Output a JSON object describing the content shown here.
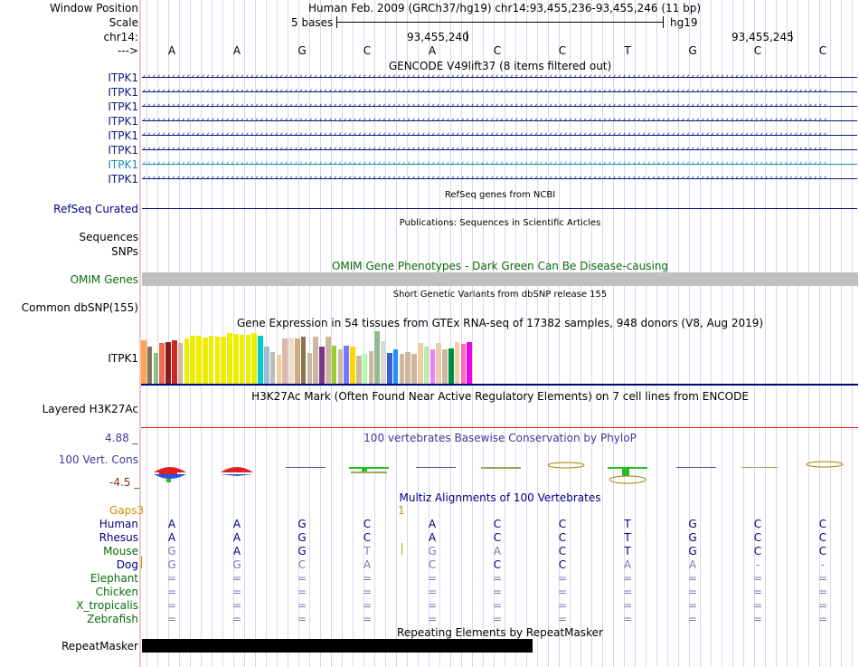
{
  "header": {
    "window_position_label": "Window Position",
    "assembly_position": "Human Feb. 2009 (GRCh37/hg19)   chr14:93,455,236-93,455,246 (11 bp)",
    "scale_label": "Scale",
    "scale_text": "5 bases",
    "scale_db": "hg19",
    "chrom_label": "chr14:",
    "pos1": "93,455,240",
    "pos2": "93,455,245",
    "strand_label": "--->",
    "bases": [
      "A",
      "A",
      "G",
      "C",
      "A",
      "C",
      "C",
      "T",
      "G",
      "C",
      "C"
    ]
  },
  "gencode": {
    "title": "GENCODE V49lift37 (8 items filtered out)",
    "items": [
      "ITPK1",
      "ITPK1",
      "ITPK1",
      "ITPK1",
      "ITPK1",
      "ITPK1",
      "ITPK1",
      "ITPK1"
    ],
    "arrows": "‹‹‹‹‹‹‹‹‹‹‹‹‹‹‹‹‹‹‹‹‹‹‹‹‹‹‹‹‹‹‹‹‹‹‹‹‹‹‹‹‹‹‹‹‹‹‹‹‹‹‹‹‹‹‹‹‹‹‹‹‹‹‹‹‹‹‹‹‹‹‹‹‹‹‹‹‹‹‹‹‹‹‹‹‹‹‹‹‹‹‹‹‹‹‹‹‹‹‹‹‹‹‹‹‹‹‹‹‹‹‹‹‹‹‹‹‹‹‹‹‹‹‹‹‹‹‹‹‹‹‹‹‹‹‹‹‹‹‹‹"
  },
  "refseq": {
    "title": "RefSeq genes from NCBI",
    "label": "RefSeq Curated"
  },
  "publications": {
    "title": "Publications: Sequences in Scientific Articles",
    "label1": "Sequences",
    "label2": "SNPs"
  },
  "omim": {
    "title": "OMIM Gene Phenotypes - Dark Green Can Be Disease-causing",
    "label": "OMIM Genes"
  },
  "dbsnp": {
    "title": "Short Genetic Variants from dbSNP release 155",
    "label": "Common dbSNP(155)"
  },
  "gtex": {
    "title": "Gene Expression in 54 tissues from GTEx RNA-seq of 17382 samples, 948 donors (V8, Aug 2019)",
    "label": "ITPK1",
    "levels": [
      0.83,
      0.7,
      0.58,
      0.78,
      0.8,
      0.82,
      0.78,
      0.87,
      0.92,
      0.92,
      0.88,
      0.92,
      0.9,
      0.9,
      0.96,
      0.95,
      0.93,
      0.93,
      0.96,
      0.92,
      0.7,
      0.6,
      0.55,
      0.87,
      0.88,
      0.86,
      0.9,
      0.58,
      0.9,
      0.7,
      0.9,
      0.72,
      0.66,
      0.73,
      0.71,
      0.54,
      0.57,
      0.62,
      1.0,
      0.81,
      0.58,
      0.66,
      0.57,
      0.6,
      0.57,
      0.77,
      0.71,
      0.66,
      0.77,
      0.65,
      0.68,
      0.8,
      0.76,
      0.8
    ],
    "colors": [
      "#ffa54f",
      "#8b7355",
      "#8fbc8f",
      "#ee6a50",
      "#8b1a1a",
      "#cd2626",
      "#cdb79e",
      "#eeee00",
      "#eeee00",
      "#eeee00",
      "#eeee00",
      "#eeee00",
      "#eeee00",
      "#eeee00",
      "#eeee00",
      "#eeee00",
      "#eeee00",
      "#eeee00",
      "#eeee00",
      "#00cdcd",
      "#9ac0cd",
      "#bbbbbb",
      "#eecfa1",
      "#ddb8a8",
      "#eedfcc",
      "#cdaa7d",
      "#8b7355",
      "#cdb79e",
      "#cdb79e",
      "#7a378b",
      "#cdb79e",
      "#9acd32",
      "#cdb79e",
      "#7777ff",
      "#ffd700",
      "#cdb79e",
      "#aaffaa",
      "#cdb79e",
      "#8fbc8f",
      "#d9d9d9",
      "#3a5fcd",
      "#1e90ff",
      "#cdb79e",
      "#cdb79e",
      "#cdb79e",
      "#eecfa1",
      "#b4eeb4",
      "#ee82ee",
      "#eecbad",
      "#cdb79e",
      "#008b45",
      "#eecfa1",
      "#ff69b4",
      "#ee00ee"
    ]
  },
  "h3k27ac": {
    "title": "H3K27Ac Mark (Often Found Near Active Regulatory Elements) on 7 cell lines from ENCODE",
    "label": "Layered H3K27Ac"
  },
  "phylop": {
    "title": "100 vertebrates Basewise Conservation by PhyloP",
    "label": "100 Vert. Cons",
    "max": "4.88 _",
    "min": "-4.5 _"
  },
  "multiz": {
    "title": "Multiz Alignments of 100 Vertebrates",
    "gaps_label": "Gaps",
    "gaps_count": "3",
    "gaps_mark": "1",
    "species": [
      {
        "name": "Human",
        "bases": [
          "A",
          "A",
          "G",
          "C",
          "A",
          "C",
          "C",
          "T",
          "G",
          "C",
          "C"
        ]
      },
      {
        "name": "Rhesus",
        "bases": [
          "A",
          "A",
          "G",
          "C",
          "A",
          "C",
          "C",
          "T",
          "G",
          "C",
          "C"
        ]
      },
      {
        "name": "Mouse",
        "bases": [
          "G",
          "A",
          "G",
          "T",
          "G",
          "A",
          "C",
          "T",
          "G",
          "C",
          "C"
        ]
      },
      {
        "name": "Dog",
        "bases": [
          "G",
          "G",
          "C",
          "A",
          "C",
          "C",
          "C",
          "A",
          "A",
          "-",
          "-"
        ]
      },
      {
        "name": "Elephant",
        "bases": [
          "=",
          "=",
          "=",
          "=",
          "=",
          "=",
          "=",
          "=",
          "=",
          "=",
          "="
        ]
      },
      {
        "name": "Chicken",
        "bases": [
          "=",
          "=",
          "=",
          "=",
          "=",
          "=",
          "=",
          "=",
          "=",
          "=",
          "="
        ]
      },
      {
        "name": "X_tropicalis",
        "bases": [
          "=",
          "=",
          "=",
          "=",
          "=",
          "=",
          "=",
          "=",
          "=",
          "=",
          "="
        ]
      },
      {
        "name": "Zebrafish",
        "bases": [
          "=",
          "=",
          "=",
          "=",
          "=",
          "=",
          "=",
          "=",
          "=",
          "=",
          "="
        ]
      }
    ]
  },
  "repeatmasker": {
    "title": "Repeating Elements by RepeatMasker",
    "label": "RepeatMasker"
  },
  "colors": {
    "navy": "#000080",
    "gene": "#0b1a7a",
    "teal": "#1a8cae",
    "green": "#0a6b0a",
    "brown": "#8b2a1a",
    "orange": "#d48b00",
    "purple": "#5050a0",
    "red": "#e02000",
    "grey": "#c0c0c0"
  }
}
